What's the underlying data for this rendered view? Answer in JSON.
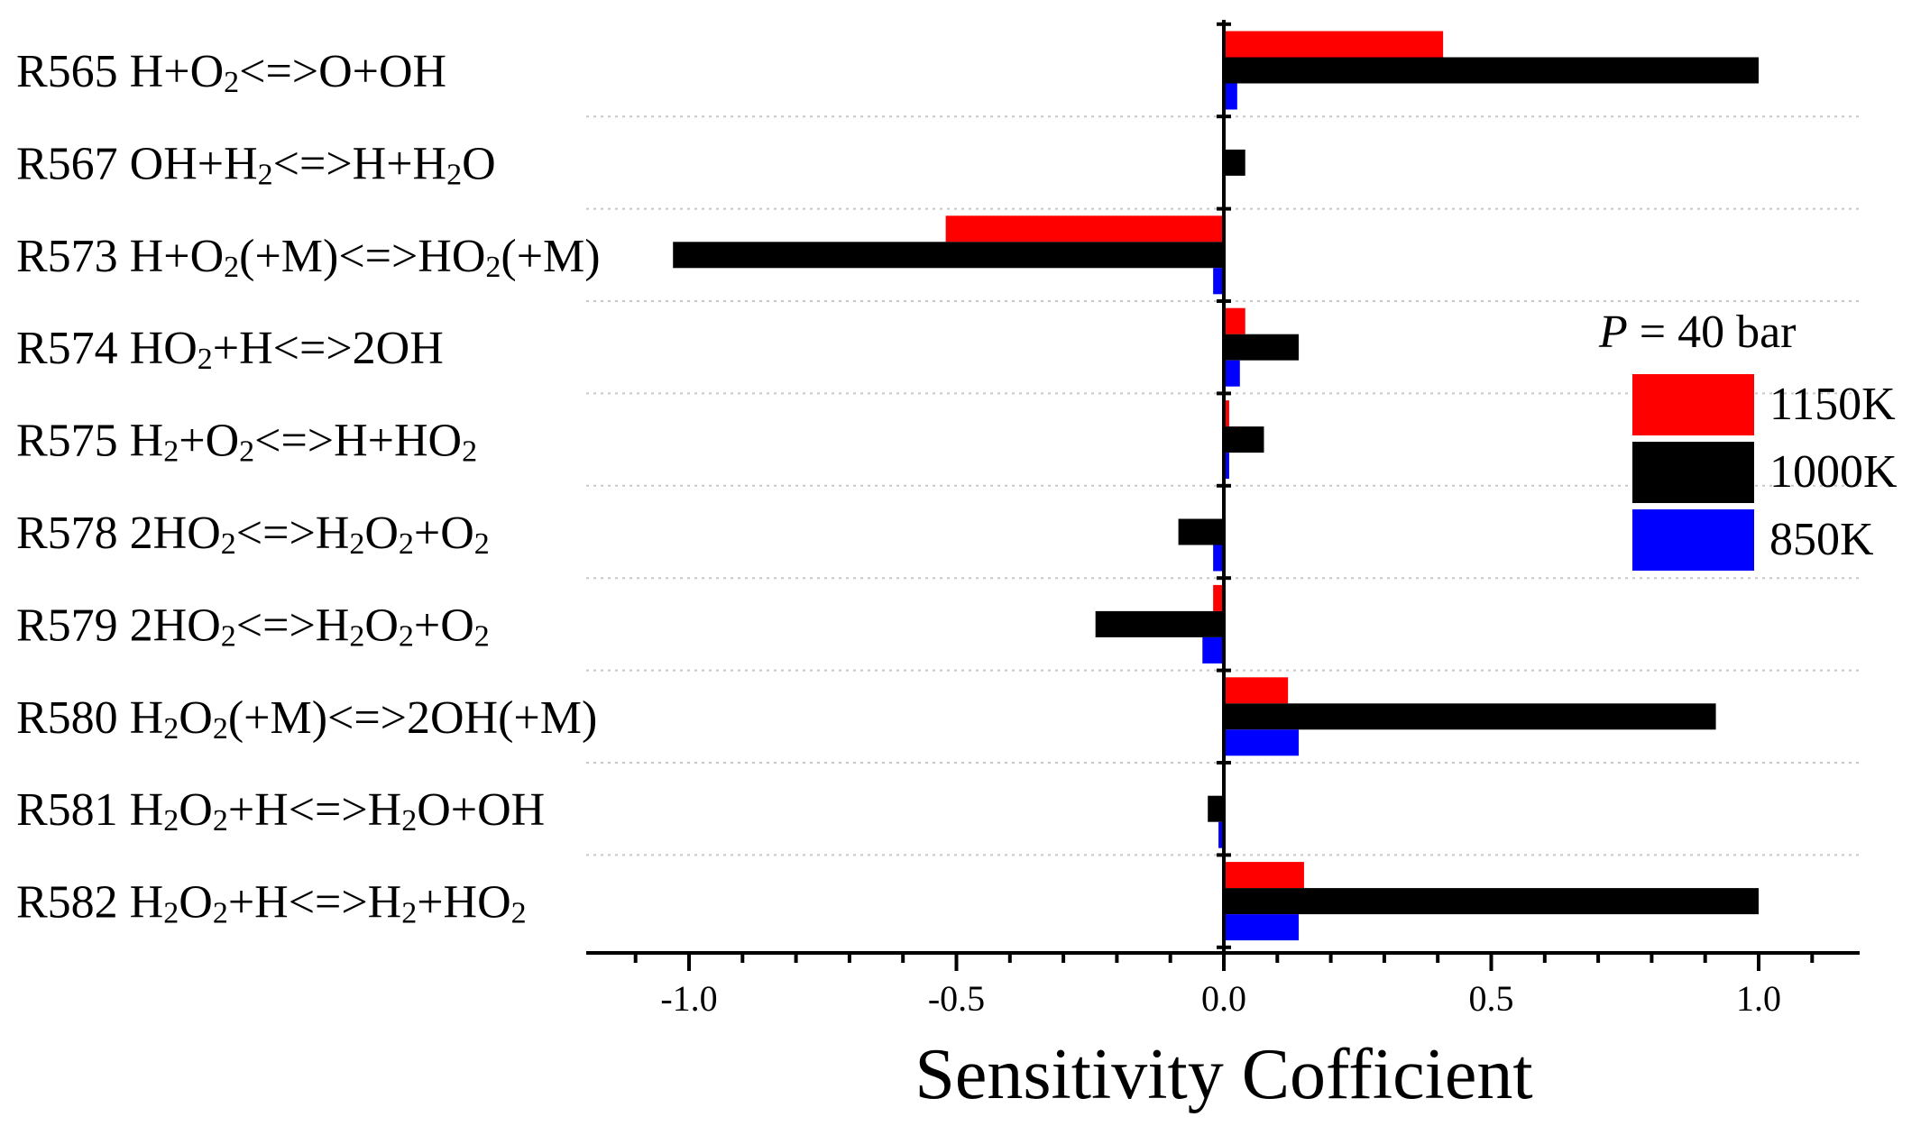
{
  "chart_data": {
    "type": "bar",
    "orientation": "horizontal",
    "xlabel": "Sensitivity Cofficient",
    "xlim": [
      -1.2,
      1.2
    ],
    "xticks": [
      -1.0,
      -0.5,
      0.0,
      0.5,
      1.0
    ],
    "xtick_labels": [
      "-1.0",
      "-0.5",
      "0.0",
      "0.5",
      "1.0"
    ],
    "grid": "horizontal dotted separators between categories",
    "categories": [
      {
        "id": "R565",
        "label": [
          {
            "t": "R565 H+O"
          },
          {
            "t": "2",
            "sub": true
          },
          {
            "t": "<=>O+OH"
          }
        ]
      },
      {
        "id": "R567",
        "label": [
          {
            "t": "R567 OH+H"
          },
          {
            "t": "2",
            "sub": true
          },
          {
            "t": "<=>H+H"
          },
          {
            "t": "2",
            "sub": true
          },
          {
            "t": "O"
          }
        ]
      },
      {
        "id": "R573",
        "label": [
          {
            "t": "R573 H+O"
          },
          {
            "t": "2",
            "sub": true
          },
          {
            "t": "(+M)<=>HO"
          },
          {
            "t": "2",
            "sub": true
          },
          {
            "t": "(+M)"
          }
        ]
      },
      {
        "id": "R574",
        "label": [
          {
            "t": "R574 HO"
          },
          {
            "t": "2",
            "sub": true
          },
          {
            "t": "+H<=>2OH"
          }
        ]
      },
      {
        "id": "R575",
        "label": [
          {
            "t": "R575 H"
          },
          {
            "t": "2",
            "sub": true
          },
          {
            "t": "+O"
          },
          {
            "t": "2",
            "sub": true
          },
          {
            "t": "<=>H+HO"
          },
          {
            "t": "2",
            "sub": true
          }
        ]
      },
      {
        "id": "R578",
        "label": [
          {
            "t": "R578 2HO"
          },
          {
            "t": "2",
            "sub": true
          },
          {
            "t": "<=>H"
          },
          {
            "t": "2",
            "sub": true
          },
          {
            "t": "O"
          },
          {
            "t": "2",
            "sub": true
          },
          {
            "t": "+O"
          },
          {
            "t": "2",
            "sub": true
          }
        ]
      },
      {
        "id": "R579",
        "label": [
          {
            "t": "R579 2HO"
          },
          {
            "t": "2",
            "sub": true
          },
          {
            "t": "<=>H"
          },
          {
            "t": "2",
            "sub": true
          },
          {
            "t": "O"
          },
          {
            "t": "2",
            "sub": true
          },
          {
            "t": "+O"
          },
          {
            "t": "2",
            "sub": true
          }
        ]
      },
      {
        "id": "R580",
        "label": [
          {
            "t": "R580 H"
          },
          {
            "t": "2",
            "sub": true
          },
          {
            "t": "O"
          },
          {
            "t": "2",
            "sub": true
          },
          {
            "t": "(+M)<=>2OH(+M)"
          }
        ]
      },
      {
        "id": "R581",
        "label": [
          {
            "t": "R581 H"
          },
          {
            "t": "2",
            "sub": true
          },
          {
            "t": "O"
          },
          {
            "t": "2",
            "sub": true
          },
          {
            "t": "+H<=>H"
          },
          {
            "t": "2",
            "sub": true
          },
          {
            "t": "O+OH"
          }
        ]
      },
      {
        "id": "R582",
        "label": [
          {
            "t": "R582 H"
          },
          {
            "t": "2",
            "sub": true
          },
          {
            "t": "O"
          },
          {
            "t": "2",
            "sub": true
          },
          {
            "t": "+H<=>H"
          },
          {
            "t": "2",
            "sub": true
          },
          {
            "t": "+HO"
          },
          {
            "t": "2",
            "sub": true
          }
        ]
      }
    ],
    "series": [
      {
        "name": "1150K",
        "color": "#ff0000",
        "values": [
          0.41,
          0.0,
          -0.52,
          0.04,
          0.01,
          0.0,
          -0.02,
          0.12,
          0.0,
          0.15
        ]
      },
      {
        "name": "1000K",
        "color": "#000000",
        "values": [
          1.0,
          0.04,
          -1.03,
          0.14,
          0.075,
          -0.085,
          -0.24,
          0.92,
          -0.03,
          1.0
        ]
      },
      {
        "name": "850K",
        "color": "#0000ff",
        "values": [
          0.025,
          0.0,
          -0.02,
          0.03,
          0.01,
          -0.02,
          -0.04,
          0.14,
          -0.01,
          0.14
        ]
      }
    ],
    "legend": {
      "title": [
        {
          "t": "P",
          "italic": true
        },
        {
          "t": " = 40 bar"
        }
      ],
      "placement": "right"
    }
  }
}
